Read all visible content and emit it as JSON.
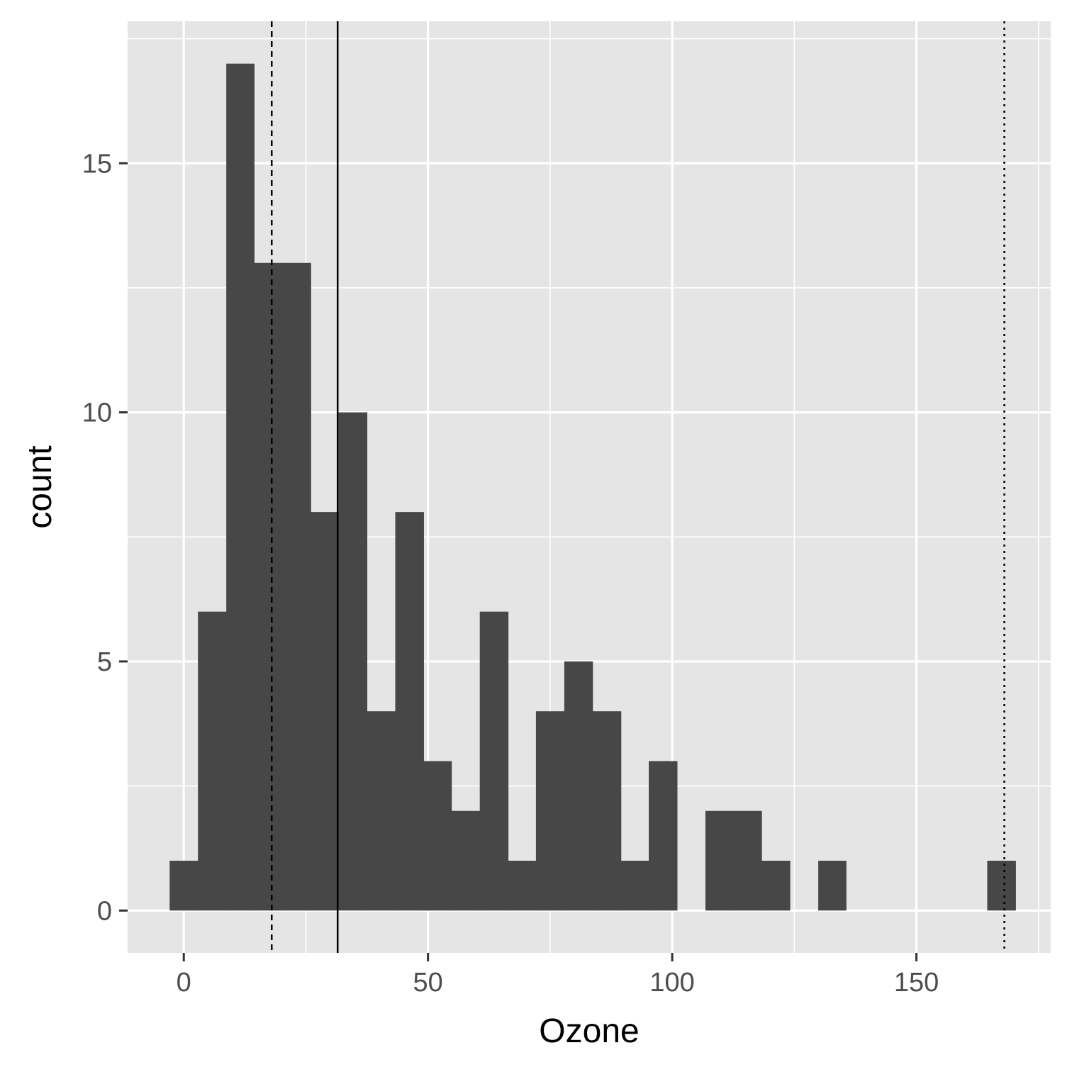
{
  "chart_data": {
    "type": "bar",
    "subtype": "histogram",
    "title": "",
    "xlabel": "Ozone",
    "ylabel": "count",
    "xlim": [
      -11.5,
      177.5
    ],
    "ylim": [
      -0.85,
      17.85
    ],
    "bin_width": 5.77,
    "x_ticks": [
      0,
      50,
      100,
      150
    ],
    "y_ticks": [
      0,
      5,
      10,
      15
    ],
    "grid": true,
    "legend": "none",
    "bins": [
      {
        "start": -2.9,
        "end": 2.9,
        "count": 1
      },
      {
        "start": 2.9,
        "end": 8.7,
        "count": 6
      },
      {
        "start": 8.7,
        "end": 14.4,
        "count": 17
      },
      {
        "start": 14.4,
        "end": 20.2,
        "count": 13
      },
      {
        "start": 20.2,
        "end": 26.0,
        "count": 13
      },
      {
        "start": 26.0,
        "end": 31.7,
        "count": 8
      },
      {
        "start": 31.7,
        "end": 37.5,
        "count": 10
      },
      {
        "start": 37.5,
        "end": 43.3,
        "count": 4
      },
      {
        "start": 43.3,
        "end": 49.1,
        "count": 8
      },
      {
        "start": 49.1,
        "end": 54.8,
        "count": 3
      },
      {
        "start": 54.8,
        "end": 60.6,
        "count": 2
      },
      {
        "start": 60.6,
        "end": 66.4,
        "count": 6
      },
      {
        "start": 66.4,
        "end": 72.1,
        "count": 1
      },
      {
        "start": 72.1,
        "end": 77.9,
        "count": 4
      },
      {
        "start": 77.9,
        "end": 83.7,
        "count": 5
      },
      {
        "start": 83.7,
        "end": 89.5,
        "count": 4
      },
      {
        "start": 89.5,
        "end": 95.2,
        "count": 1
      },
      {
        "start": 95.2,
        "end": 101.0,
        "count": 3
      },
      {
        "start": 101.0,
        "end": 106.8,
        "count": 0
      },
      {
        "start": 106.8,
        "end": 112.5,
        "count": 2
      },
      {
        "start": 112.5,
        "end": 118.3,
        "count": 2
      },
      {
        "start": 118.3,
        "end": 124.1,
        "count": 1
      },
      {
        "start": 124.1,
        "end": 129.9,
        "count": 0
      },
      {
        "start": 129.9,
        "end": 135.6,
        "count": 1
      },
      {
        "start": 135.6,
        "end": 141.4,
        "count": 0
      },
      {
        "start": 141.4,
        "end": 147.2,
        "count": 0
      },
      {
        "start": 147.2,
        "end": 152.9,
        "count": 0
      },
      {
        "start": 152.9,
        "end": 158.7,
        "count": 0
      },
      {
        "start": 158.7,
        "end": 164.5,
        "count": 0
      },
      {
        "start": 164.5,
        "end": 170.3,
        "count": 1
      }
    ],
    "reference_lines": [
      {
        "x": 18,
        "style": "dashed"
      },
      {
        "x": 31.5,
        "style": "solid"
      },
      {
        "x": 168,
        "style": "dotted"
      }
    ],
    "colors": {
      "bar": "#474747",
      "panel": "#e5e5e5",
      "grid": "#ffffff",
      "tick_text": "#4d4d4d",
      "axis_title": "#000000",
      "line": "#000000"
    }
  }
}
